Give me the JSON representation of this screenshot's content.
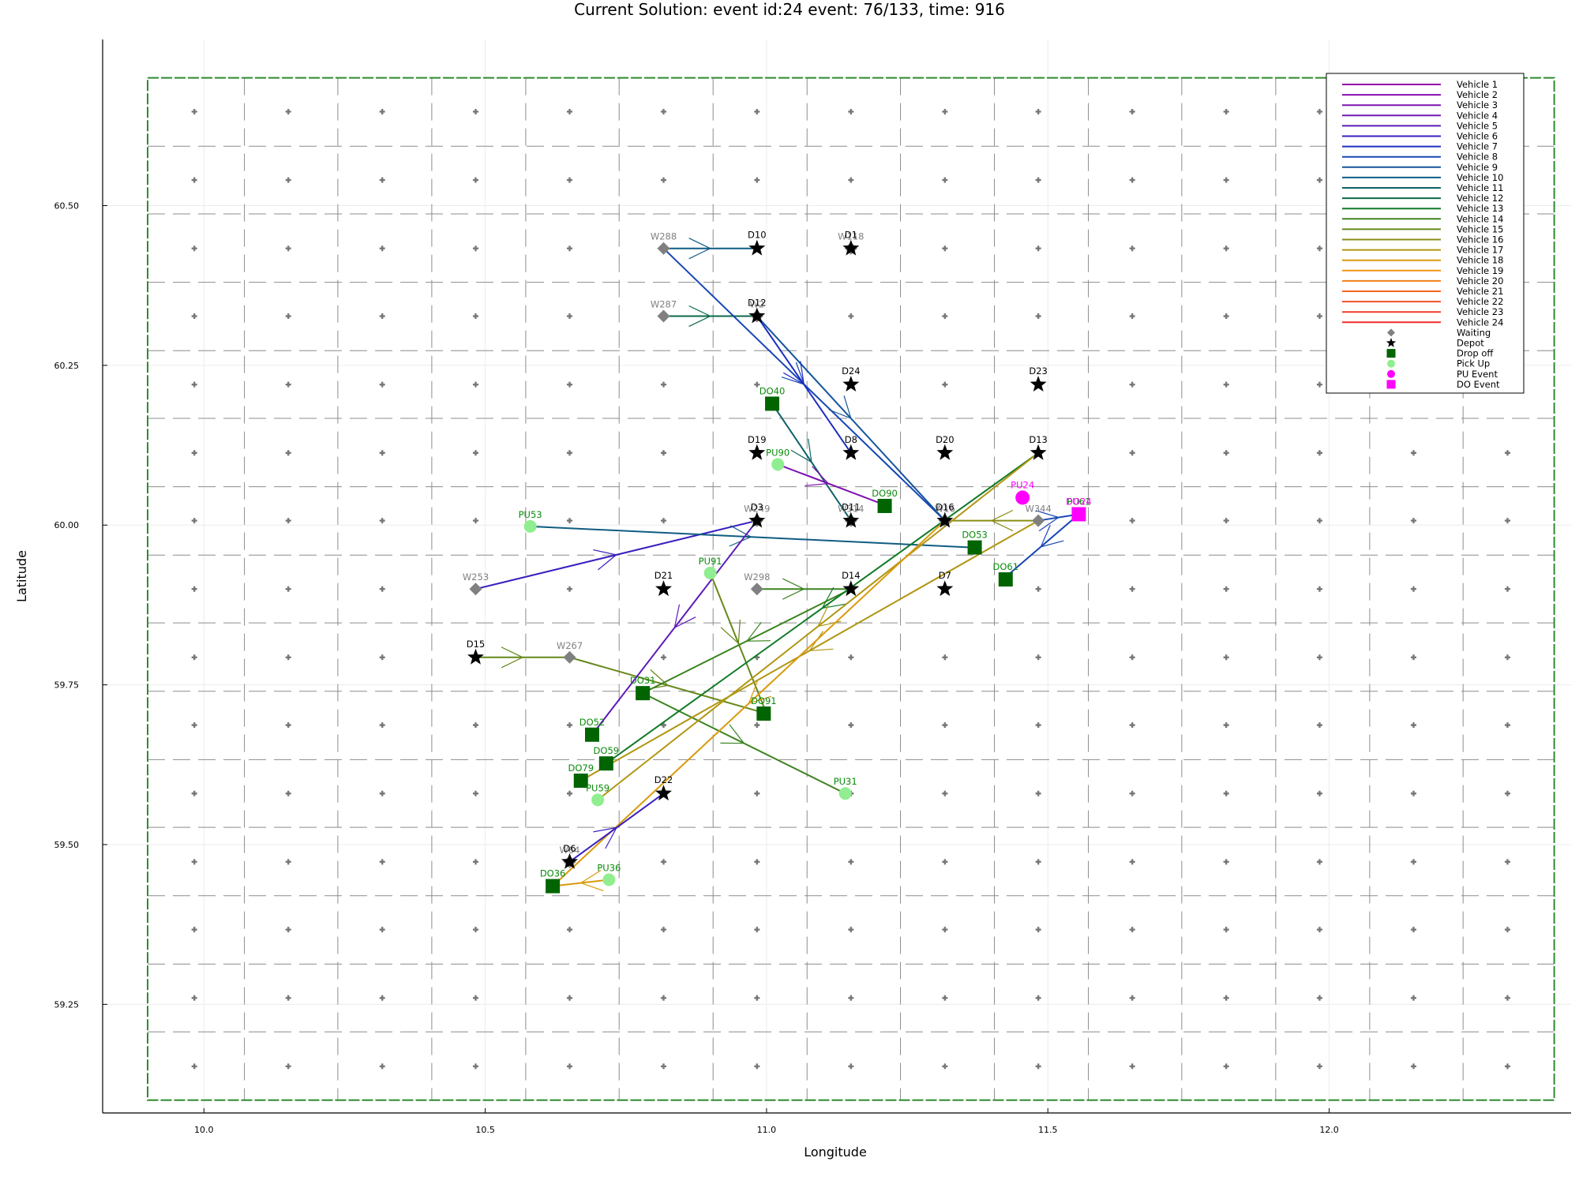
{
  "chart_data": {
    "type": "scatter",
    "title": "Current Solution: event id:24 event: 76/133, time: 916",
    "xlabel": "Longitude",
    "ylabel": "Latitude",
    "xlim": [
      9.82,
      12.43
    ],
    "ylim": [
      59.08,
      60.76
    ],
    "xticks": [
      {
        "v": 10.0,
        "label": "10.0"
      },
      {
        "v": 10.5,
        "label": "10.5"
      },
      {
        "v": 11.0,
        "label": "11.0"
      },
      {
        "v": 11.5,
        "label": "11.5"
      },
      {
        "v": 12.0,
        "label": "12.0"
      }
    ],
    "yticks": [
      {
        "v": 59.25,
        "label": "59.25"
      },
      {
        "v": 59.5,
        "label": "59.50"
      },
      {
        "v": 59.75,
        "label": "59.75"
      },
      {
        "v": 60.0,
        "label": "60.00"
      },
      {
        "v": 60.25,
        "label": "60.25"
      },
      {
        "v": 60.5,
        "label": "60.50"
      }
    ],
    "grid": true,
    "legend_position": "top-right",
    "region": {
      "lon": [
        9.9,
        12.4
      ],
      "lat": [
        59.1,
        60.7
      ],
      "color": "#2e8b2e"
    },
    "grid_lines": {
      "lon": [
        10.072,
        10.238,
        10.405,
        10.572,
        10.738,
        10.905,
        11.072,
        11.238,
        11.405,
        11.572,
        11.738,
        11.905,
        12.072,
        12.238
      ],
      "lat": [
        59.207,
        59.313,
        59.42,
        59.527,
        59.633,
        59.74,
        59.847,
        59.953,
        60.06,
        60.167,
        60.273,
        60.38,
        60.487,
        60.593
      ]
    },
    "cell_centers": {
      "lon": [
        9.983,
        10.15,
        10.317,
        10.483,
        10.65,
        10.817,
        10.983,
        11.15,
        11.317,
        11.483,
        11.65,
        11.817,
        11.983,
        12.15,
        12.317
      ],
      "lat": [
        59.153,
        59.26,
        59.367,
        59.473,
        59.58,
        59.687,
        59.793,
        59.9,
        60.007,
        60.113,
        60.22,
        60.327,
        60.433,
        60.54,
        60.647
      ]
    },
    "legend": [
      {
        "label": "Vehicle 1",
        "color": "#9400a8",
        "kind": "line"
      },
      {
        "label": "Vehicle 2",
        "color": "#8b0dad",
        "kind": "line"
      },
      {
        "label": "Vehicle 3",
        "color": "#7d12b0",
        "kind": "line"
      },
      {
        "label": "Vehicle 4",
        "color": "#6e18b5",
        "kind": "line"
      },
      {
        "label": "Vehicle 5",
        "color": "#5d1bb9",
        "kind": "line"
      },
      {
        "label": "Vehicle 6",
        "color": "#3a1fbf",
        "kind": "line"
      },
      {
        "label": "Vehicle 7",
        "color": "#1e2dc2",
        "kind": "line"
      },
      {
        "label": "Vehicle 8",
        "color": "#1846b5",
        "kind": "line"
      },
      {
        "label": "Vehicle 9",
        "color": "#13559c",
        "kind": "line"
      },
      {
        "label": "Vehicle 10",
        "color": "#0f5c82",
        "kind": "line"
      },
      {
        "label": "Vehicle 11",
        "color": "#0c6266",
        "kind": "line"
      },
      {
        "label": "Vehicle 12",
        "color": "#0b6a4a",
        "kind": "line"
      },
      {
        "label": "Vehicle 13",
        "color": "#0f7a26",
        "kind": "line"
      },
      {
        "label": "Vehicle 14",
        "color": "#3d8420",
        "kind": "line"
      },
      {
        "label": "Vehicle 15",
        "color": "#66881b",
        "kind": "line"
      },
      {
        "label": "Vehicle 16",
        "color": "#8a8e17",
        "kind": "line"
      },
      {
        "label": "Vehicle 17",
        "color": "#b09612",
        "kind": "line"
      },
      {
        "label": "Vehicle 18",
        "color": "#d99a0b",
        "kind": "line"
      },
      {
        "label": "Vehicle 19",
        "color": "#f29212",
        "kind": "line"
      },
      {
        "label": "Vehicle 20",
        "color": "#f57d1c",
        "kind": "line"
      },
      {
        "label": "Vehicle 21",
        "color": "#f46624",
        "kind": "line"
      },
      {
        "label": "Vehicle 22",
        "color": "#f34f2a",
        "kind": "line"
      },
      {
        "label": "Vehicle 23",
        "color": "#f2382e",
        "kind": "line"
      },
      {
        "label": "Vehicle 24",
        "color": "#f02a2a",
        "kind": "line"
      },
      {
        "label": "Waiting",
        "color": "#808080",
        "kind": "diamond"
      },
      {
        "label": "Depot",
        "color": "#000000",
        "kind": "star"
      },
      {
        "label": "Drop off",
        "color": "#006400",
        "kind": "square"
      },
      {
        "label": "Pick Up",
        "color": "#90ee90",
        "kind": "circle"
      },
      {
        "label": "PU Event",
        "color": "#ff00ff",
        "kind": "circle"
      },
      {
        "label": "DO Event",
        "color": "#ff00ff",
        "kind": "square"
      }
    ],
    "routes": [
      {
        "color": "#0f5c82",
        "points": [
          [
            10.817,
            60.433
          ],
          [
            10.983,
            60.433
          ]
        ]
      },
      {
        "color": "#0b6a4a",
        "points": [
          [
            10.817,
            60.327
          ],
          [
            10.983,
            60.327
          ]
        ]
      },
      {
        "color": "#1846b5",
        "points": [
          [
            10.817,
            60.433
          ],
          [
            11.317,
            60.007
          ]
        ]
      },
      {
        "color": "#13559c",
        "points": [
          [
            10.983,
            60.327
          ],
          [
            11.317,
            60.007
          ]
        ]
      },
      {
        "color": "#1e2dc2",
        "points": [
          [
            10.983,
            60.327
          ],
          [
            11.15,
            60.113
          ]
        ]
      },
      {
        "color": "#0c6266",
        "points": [
          [
            11.01,
            60.19
          ],
          [
            11.15,
            60.007
          ]
        ]
      },
      {
        "color": "#7d12b0",
        "points": [
          [
            11.02,
            60.095
          ],
          [
            11.2,
            60.035
          ]
        ]
      },
      {
        "color": "#3a1fbf",
        "points": [
          [
            10.483,
            59.9
          ],
          [
            10.983,
            60.007
          ]
        ]
      },
      {
        "color": "#0f5c82",
        "points": [
          [
            10.58,
            59.998
          ],
          [
            11.365,
            59.965
          ]
        ]
      },
      {
        "color": "#1846b5",
        "points": [
          [
            11.483,
            60.007
          ],
          [
            11.555,
            60.017
          ],
          [
            11.42,
            59.915
          ]
        ]
      },
      {
        "color": "#66881b",
        "points": [
          [
            10.483,
            59.793
          ],
          [
            10.65,
            59.793
          ],
          [
            11.0,
            59.705
          ]
        ]
      },
      {
        "color": "#3d8420",
        "points": [
          [
            10.983,
            59.9
          ],
          [
            11.15,
            59.9
          ]
        ]
      },
      {
        "color": "#5d1bb9",
        "points": [
          [
            10.983,
            60.007
          ],
          [
            10.69,
            59.672
          ]
        ]
      },
      {
        "color": "#66881b",
        "points": [
          [
            10.9,
            59.925
          ],
          [
            11.0,
            59.705
          ]
        ]
      },
      {
        "color": "#3d8420",
        "points": [
          [
            11.15,
            59.9
          ],
          [
            10.78,
            59.737
          ]
        ]
      },
      {
        "color": "#3d8420",
        "points": [
          [
            10.78,
            59.737
          ],
          [
            11.14,
            59.58
          ]
        ]
      },
      {
        "color": "#0f7a26",
        "points": [
          [
            11.483,
            60.113
          ],
          [
            10.715,
            59.627
          ]
        ]
      },
      {
        "color": "#8a8e17",
        "points": [
          [
            11.483,
            60.007
          ],
          [
            11.317,
            60.007
          ]
        ]
      },
      {
        "color": "#b09612",
        "points": [
          [
            11.483,
            60.007
          ],
          [
            10.67,
            59.6
          ]
        ]
      },
      {
        "color": "#b09612",
        "points": [
          [
            11.483,
            60.113
          ],
          [
            10.7,
            59.57
          ]
        ]
      },
      {
        "color": "#d99a0b",
        "points": [
          [
            11.317,
            60.007
          ],
          [
            10.62,
            59.435
          ]
        ]
      },
      {
        "color": "#3a1fbf",
        "points": [
          [
            10.65,
            59.473
          ],
          [
            10.817,
            59.58
          ]
        ]
      },
      {
        "color": "#d99a0b",
        "points": [
          [
            10.72,
            59.445
          ],
          [
            10.62,
            59.435
          ]
        ]
      }
    ],
    "waiting": [
      {
        "label": "W288",
        "x": 10.817,
        "y": 60.433
      },
      {
        "label": "W287",
        "x": 10.817,
        "y": 60.327
      },
      {
        "label": "W118",
        "x": 11.15,
        "y": 60.433
      },
      {
        "label": "W2",
        "x": 10.983,
        "y": 60.327
      },
      {
        "label": "W249",
        "x": 10.983,
        "y": 60.007
      },
      {
        "label": "W314",
        "x": 11.15,
        "y": 60.007
      },
      {
        "label": "W16",
        "x": 11.317,
        "y": 60.007
      },
      {
        "label": "W344",
        "x": 11.483,
        "y": 60.007
      },
      {
        "label": "W298",
        "x": 10.983,
        "y": 59.9
      },
      {
        "label": "W253",
        "x": 10.483,
        "y": 59.9
      },
      {
        "label": "W267",
        "x": 10.65,
        "y": 59.793
      },
      {
        "label": "W64",
        "x": 10.65,
        "y": 59.473
      }
    ],
    "depots": [
      {
        "label": "D10",
        "x": 10.983,
        "y": 60.433
      },
      {
        "label": "D1",
        "x": 11.15,
        "y": 60.433
      },
      {
        "label": "D12",
        "x": 10.983,
        "y": 60.327
      },
      {
        "label": "D24",
        "x": 11.15,
        "y": 60.22
      },
      {
        "label": "D23",
        "x": 11.483,
        "y": 60.22
      },
      {
        "label": "D19",
        "x": 10.983,
        "y": 60.113
      },
      {
        "label": "D8",
        "x": 11.15,
        "y": 60.113
      },
      {
        "label": "D20",
        "x": 11.317,
        "y": 60.113
      },
      {
        "label": "D13",
        "x": 11.483,
        "y": 60.113
      },
      {
        "label": "D3",
        "x": 10.983,
        "y": 60.007
      },
      {
        "label": "D11",
        "x": 11.15,
        "y": 60.007
      },
      {
        "label": "D16",
        "x": 11.317,
        "y": 60.007
      },
      {
        "label": "D21",
        "x": 10.817,
        "y": 59.9
      },
      {
        "label": "D14",
        "x": 11.15,
        "y": 59.9
      },
      {
        "label": "D7",
        "x": 11.317,
        "y": 59.9
      },
      {
        "label": "D15",
        "x": 10.483,
        "y": 59.793
      },
      {
        "label": "D22",
        "x": 10.817,
        "y": 59.58
      },
      {
        "label": "D6",
        "x": 10.65,
        "y": 59.473
      }
    ],
    "dropoffs": [
      {
        "label": "DO40",
        "x": 11.01,
        "y": 60.19
      },
      {
        "label": "DO90",
        "x": 11.21,
        "y": 60.03
      },
      {
        "label": "DO53",
        "x": 11.37,
        "y": 59.965
      },
      {
        "label": "DO61",
        "x": 11.425,
        "y": 59.915
      },
      {
        "label": "DO31",
        "x": 10.78,
        "y": 59.737
      },
      {
        "label": "DO91",
        "x": 10.995,
        "y": 59.705
      },
      {
        "label": "DO52",
        "x": 10.69,
        "y": 59.672
      },
      {
        "label": "DO59",
        "x": 10.715,
        "y": 59.627
      },
      {
        "label": "DO79",
        "x": 10.67,
        "y": 59.6
      },
      {
        "label": "DO36",
        "x": 10.62,
        "y": 59.435
      }
    ],
    "pickups": [
      {
        "label": "PU90",
        "x": 11.02,
        "y": 60.095
      },
      {
        "label": "PU53",
        "x": 10.58,
        "y": 59.998
      },
      {
        "label": "PU91",
        "x": 10.9,
        "y": 59.925
      },
      {
        "label": "PU59",
        "x": 10.7,
        "y": 59.57
      },
      {
        "label": "PU31",
        "x": 11.14,
        "y": 59.58
      },
      {
        "label": "PU36",
        "x": 10.72,
        "y": 59.445
      },
      {
        "label": "PU61",
        "x": 11.555,
        "y": 60.018
      }
    ],
    "pu_events": [
      {
        "label": "PU24",
        "x": 11.455,
        "y": 60.043
      }
    ],
    "do_events": [
      {
        "label": "DO24",
        "x": 11.555,
        "y": 60.017
      }
    ]
  }
}
